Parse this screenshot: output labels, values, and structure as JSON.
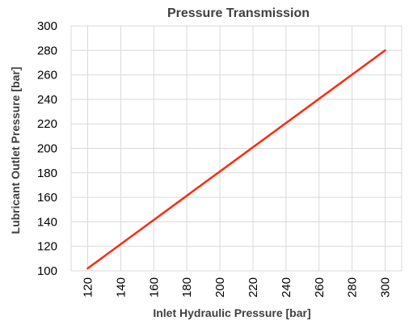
{
  "chart_data": {
    "type": "line",
    "title": "Pressure Transmission",
    "xlabel": "Inlet Hydraulic Pressure [bar]",
    "ylabel": "Lubricant Outlet Pressure [bar]",
    "xlim": [
      110,
      310
    ],
    "ylim": [
      100,
      300
    ],
    "xticks": [
      "120",
      "140",
      "160",
      "180",
      "200",
      "220",
      "240",
      "260",
      "280",
      "300"
    ],
    "yticks": [
      "100",
      "120",
      "140",
      "160",
      "180",
      "200",
      "220",
      "240",
      "260",
      "280",
      "300"
    ],
    "grid": true,
    "legend": "none",
    "series": [
      {
        "x": [
          120,
          300
        ],
        "y": [
          102,
          280
        ],
        "color": "#ff2a0e"
      }
    ]
  }
}
